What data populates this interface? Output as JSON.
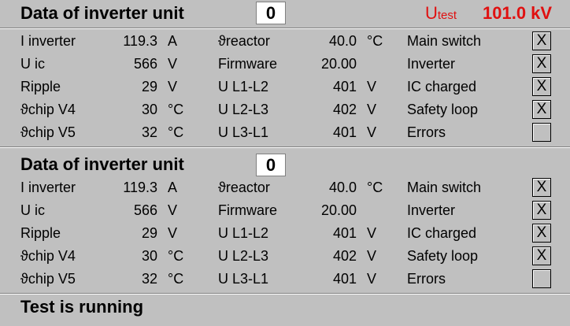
{
  "panel1": {
    "title": "Data of inverter unit",
    "unit_number": "0",
    "utest_symbol": "U",
    "utest_sub": "test",
    "utest_value": "101.0 kV",
    "rows": [
      {
        "l1": "I inverter",
        "v1": "119.3",
        "u1": "A",
        "l2": "ϑreactor",
        "v2": "40.0",
        "u2": "°C",
        "l3": "Main switch",
        "check": "X"
      },
      {
        "l1": "U ic",
        "v1": "566",
        "u1": "V",
        "l2": "Firmware",
        "v2": "20.00",
        "u2": "",
        "l3": "Inverter",
        "check": "X"
      },
      {
        "l1": "Ripple",
        "v1": "29",
        "u1": "V",
        "l2": "U L1-L2",
        "v2": "401",
        "u2": "V",
        "l3": "IC charged",
        "check": "X"
      },
      {
        "l1": "ϑchip V4",
        "v1": "30",
        "u1": "°C",
        "l2": "U L2-L3",
        "v2": "402",
        "u2": "V",
        "l3": "Safety loop",
        "check": "X"
      },
      {
        "l1": "ϑchip V5",
        "v1": "32",
        "u1": "°C",
        "l2": "U L3-L1",
        "v2": "401",
        "u2": "V",
        "l3": "Errors",
        "check": ""
      }
    ]
  },
  "panel2": {
    "title": "Data of inverter unit",
    "unit_number": "0",
    "rows": [
      {
        "l1": "I inverter",
        "v1": "119.3",
        "u1": "A",
        "l2": "ϑreactor",
        "v2": "40.0",
        "u2": "°C",
        "l3": "Main switch",
        "check": "X"
      },
      {
        "l1": "U ic",
        "v1": "566",
        "u1": "V",
        "l2": "Firmware",
        "v2": "20.00",
        "u2": "",
        "l3": "Inverter",
        "check": "X"
      },
      {
        "l1": "Ripple",
        "v1": "29",
        "u1": "V",
        "l2": "U L1-L2",
        "v2": "401",
        "u2": "V",
        "l3": "IC charged",
        "check": "X"
      },
      {
        "l1": "ϑchip V4",
        "v1": "30",
        "u1": "°C",
        "l2": "U L2-L3",
        "v2": "402",
        "u2": "V",
        "l3": "Safety loop",
        "check": "X"
      },
      {
        "l1": "ϑchip V5",
        "v1": "32",
        "u1": "°C",
        "l2": "U L3-L1",
        "v2": "401",
        "u2": "V",
        "l3": "Errors",
        "check": ""
      }
    ]
  },
  "status": "Test is running",
  "colors": {
    "background": "#c0c0c0",
    "utest": "#e01010"
  }
}
